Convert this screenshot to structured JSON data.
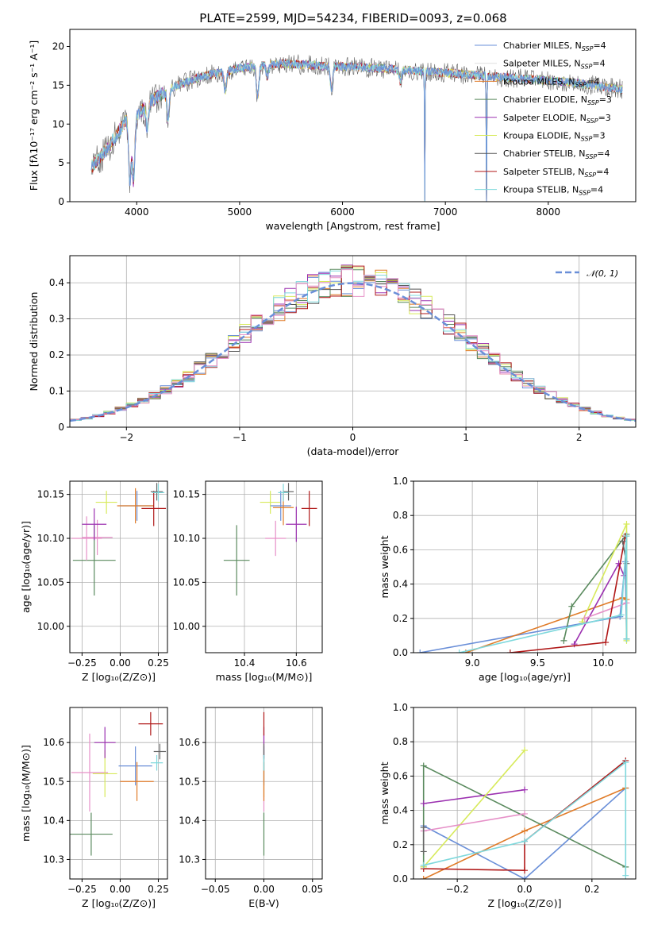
{
  "colors": {
    "Chabrier MILES": "#6a8fd8",
    "Salpeter MILES": "#e0e0e0",
    "Kroupa MILES": "#e07b28",
    "Chabrier ELODIE": "#5a8a5e",
    "Salpeter ELODIE": "#9b30b0",
    "Kroupa ELODIE": "#d7ea5a",
    "Chabrier STELIB": "#666666",
    "Salpeter STELIB": "#b01818",
    "Kroupa STELIB": "#7ed8dc",
    "pink": "#e690c8",
    "gaussian": "#6a8fd8"
  },
  "chart_data": [
    {
      "id": "spectrum",
      "type": "line",
      "title": "PLATE=2599, MJD=54234, FIBERID=0093, z=0.068",
      "xlabel": "wavelength [Angstrom, rest frame]",
      "ylabel": "Flux [fλ10⁻¹⁷ erg cm⁻² s⁻¹ A⁻¹]",
      "xlim": [
        3350,
        8850
      ],
      "ylim": [
        0,
        22.2
      ],
      "xticks": [
        4000,
        5000,
        6000,
        7000,
        8000
      ],
      "yticks": [
        0,
        5,
        10,
        15,
        20
      ],
      "legend_position": "top-right",
      "grid": false,
      "series": [
        {
          "name": "Chabrier MILES, N_SSP=4",
          "label": "Chabrier MILES, N",
          "sub": "SSP",
          "suffix": "=4",
          "color": "#6a8fd8"
        },
        {
          "name": "Salpeter MILES, N_SSP=4",
          "label": "Salpeter MILES, N",
          "sub": "SSP",
          "suffix": "=4",
          "color": "#e0e0e0"
        },
        {
          "name": "Kroupa MILES, N_SSP=4",
          "label": "Kroupa MILES, N",
          "sub": "SSP",
          "suffix": "=4",
          "color": "#e07b28"
        },
        {
          "name": "Chabrier ELODIE, N_SSP=3",
          "label": "Chabrier ELODIE, N",
          "sub": "SSP",
          "suffix": "=3",
          "color": "#5a8a5e"
        },
        {
          "name": "Salpeter ELODIE, N_SSP=3",
          "label": "Salpeter ELODIE, N",
          "sub": "SSP",
          "suffix": "=3",
          "color": "#9b30b0"
        },
        {
          "name": "Kroupa ELODIE, N_SSP=3",
          "label": "Kroupa ELODIE, N",
          "sub": "SSP",
          "suffix": "=3",
          "color": "#d7ea5a"
        },
        {
          "name": "Chabrier STELIB, N_SSP=4",
          "label": "Chabrier STELIB, N",
          "sub": "SSP",
          "suffix": "=4",
          "color": "#555555"
        },
        {
          "name": "Salpeter STELIB, N_SSP=4",
          "label": "Salpeter STELIB, N",
          "sub": "SSP",
          "suffix": "=4",
          "color": "#b01818"
        },
        {
          "name": "Kroupa STELIB, N_SSP=4",
          "label": "Kroupa STELIB, N",
          "sub": "SSP",
          "suffix": "=4",
          "color": "#7ed8dc"
        }
      ],
      "continuum": [
        [
          3560,
          4.5
        ],
        [
          3700,
          6.5
        ],
        [
          3900,
          10.5
        ],
        [
          4000,
          11.0
        ],
        [
          4100,
          12.5
        ],
        [
          4300,
          14.5
        ],
        [
          4600,
          16.0
        ],
        [
          5000,
          17.2
        ],
        [
          5400,
          17.8
        ],
        [
          5800,
          17.5
        ],
        [
          6200,
          17.3
        ],
        [
          6600,
          17.0
        ],
        [
          7000,
          16.6
        ],
        [
          7400,
          16.2
        ],
        [
          7800,
          15.8
        ],
        [
          8200,
          15.4
        ],
        [
          8700,
          14.5
        ]
      ],
      "absorption": [
        [
          3934,
          8
        ],
        [
          3969,
          8
        ],
        [
          4102,
          3
        ],
        [
          4304,
          4
        ],
        [
          4861,
          2.5
        ],
        [
          5175,
          4
        ],
        [
          5270,
          1.5
        ],
        [
          5893,
          3
        ],
        [
          6563,
          1.5
        ],
        [
          6800,
          17
        ],
        [
          7400,
          17
        ]
      ]
    },
    {
      "id": "residuals",
      "type": "bar",
      "xlabel": "(data-model)/error",
      "ylabel": "Normed distribution",
      "xlim": [
        -2.5,
        2.5
      ],
      "ylim": [
        0,
        0.475
      ],
      "xticks": [
        -2,
        -1,
        0,
        1,
        2
      ],
      "yticks": [
        0.0,
        0.1,
        0.2,
        0.3,
        0.4
      ],
      "bin_width": 0.1,
      "legend": "𝒩(0, 1)",
      "legend_position": "top-right",
      "grid": true
    },
    {
      "id": "Z-age",
      "type": "scatter",
      "xlabel": "Z [log₁₀(Z/Z⊙)]",
      "ylabel": "age  [log₁₀(age/yr)]",
      "xlim": [
        -0.33,
        0.31
      ],
      "ylim": [
        9.97,
        10.165
      ],
      "xticks": [
        -0.25,
        0.0,
        0.25
      ],
      "xticklabels": [
        "−0.25",
        "0.00",
        "0.25"
      ],
      "yticks": [
        10.0,
        10.05,
        10.1,
        10.15
      ],
      "yticklabels": [
        "10.00",
        "10.05",
        "10.10",
        "10.15"
      ],
      "grid": true,
      "points": [
        {
          "x": -0.17,
          "y": 10.075,
          "xerr": 0.14,
          "yerr": 0.04,
          "color": "#5a8a5e"
        },
        {
          "x": -0.22,
          "y": 10.1,
          "xerr": 0.1,
          "yerr": 0.025,
          "color": "#e690c8"
        },
        {
          "x": -0.15,
          "y": 10.101,
          "xerr": 0.1,
          "yerr": 0.02,
          "color": "#e690c8"
        },
        {
          "x": -0.17,
          "y": 10.116,
          "xerr": 0.08,
          "yerr": 0.018,
          "color": "#9b30b0"
        },
        {
          "x": -0.09,
          "y": 10.141,
          "xerr": 0.07,
          "yerr": 0.013,
          "color": "#d7ea5a"
        },
        {
          "x": 0.11,
          "y": 10.137,
          "xerr": 0.11,
          "yerr": 0.017,
          "color": "#6a8fd8"
        },
        {
          "x": 0.1,
          "y": 10.137,
          "xerr": 0.12,
          "yerr": 0.02,
          "color": "#e07b28"
        },
        {
          "x": 0.22,
          "y": 10.134,
          "xerr": 0.08,
          "yerr": 0.02,
          "color": "#b01818"
        },
        {
          "x": 0.24,
          "y": 10.153,
          "xerr": 0.04,
          "yerr": 0.01,
          "color": "#666666"
        },
        {
          "x": 0.25,
          "y": 10.152,
          "xerr": 0.04,
          "yerr": 0.01,
          "color": "#7ed8dc"
        }
      ]
    },
    {
      "id": "mass-age",
      "type": "scatter",
      "xlabel": "mass [log₁₀(M/M⊙)]",
      "xlim": [
        10.25,
        10.7
      ],
      "ylim": [
        9.97,
        10.165
      ],
      "xticks": [
        10.4,
        10.6
      ],
      "xticklabels": [
        "10.4",
        "10.6"
      ],
      "yticks": [
        10.0,
        10.05,
        10.1,
        10.15
      ],
      "yticklabels": [
        "10.00",
        "10.05",
        "10.10",
        "10.15"
      ],
      "grid": true,
      "points": [
        {
          "x": 10.37,
          "y": 10.075,
          "xerr": 0.05,
          "yerr": 0.04,
          "color": "#5a8a5e"
        },
        {
          "x": 10.52,
          "y": 10.1,
          "xerr": 0.04,
          "yerr": 0.02,
          "color": "#e690c8"
        },
        {
          "x": 10.6,
          "y": 10.116,
          "xerr": 0.04,
          "yerr": 0.02,
          "color": "#9b30b0"
        },
        {
          "x": 10.5,
          "y": 10.141,
          "xerr": 0.04,
          "yerr": 0.013,
          "color": "#d7ea5a"
        },
        {
          "x": 10.54,
          "y": 10.137,
          "xerr": 0.04,
          "yerr": 0.017,
          "color": "#6a8fd8"
        },
        {
          "x": 10.55,
          "y": 10.135,
          "xerr": 0.04,
          "yerr": 0.02,
          "color": "#e07b28"
        },
        {
          "x": 10.65,
          "y": 10.134,
          "xerr": 0.03,
          "yerr": 0.02,
          "color": "#b01818"
        },
        {
          "x": 10.57,
          "y": 10.153,
          "xerr": 0.02,
          "yerr": 0.01,
          "color": "#666666"
        },
        {
          "x": 10.55,
          "y": 10.152,
          "xerr": 0.02,
          "yerr": 0.01,
          "color": "#7ed8dc"
        }
      ]
    },
    {
      "id": "age-weight",
      "type": "line",
      "xlabel": "age  [log₁₀(age/yr)]",
      "ylabel": "mass weight",
      "xlim": [
        8.55,
        10.25
      ],
      "ylim": [
        0,
        1
      ],
      "xticks": [
        9.0,
        9.5,
        10.0
      ],
      "xticklabels": [
        "9.0",
        "9.5",
        "10.0"
      ],
      "yticks": [
        0,
        0.2,
        0.4,
        0.6,
        0.8,
        1.0
      ],
      "yticklabels": [
        "0.0",
        "0.2",
        "0.4",
        "0.6",
        "0.8",
        "1.0"
      ],
      "grid": true,
      "series": [
        {
          "color": "#6a8fd8",
          "points": [
            [
              8.6,
              0.0
            ],
            [
              10.13,
              0.21
            ],
            [
              10.17,
              0.53
            ],
            [
              10.18,
              0.08
            ]
          ]
        },
        {
          "color": "#e07b28",
          "points": [
            [
              8.95,
              0.0
            ],
            [
              10.15,
              0.32
            ],
            [
              10.18,
              0.31
            ]
          ]
        },
        {
          "color": "#5a8a5e",
          "points": [
            [
              9.7,
              0.07
            ],
            [
              9.76,
              0.27
            ],
            [
              10.18,
              0.69
            ],
            [
              10.18,
              0.08
            ]
          ]
        },
        {
          "color": "#9b30b0",
          "points": [
            [
              9.78,
              0.05
            ],
            [
              10.12,
              0.52
            ],
            [
              10.16,
              0.45
            ]
          ]
        },
        {
          "color": "#d7ea5a",
          "points": [
            [
              9.84,
              0.18
            ],
            [
              10.18,
              0.75
            ],
            [
              10.18,
              0.07
            ]
          ]
        },
        {
          "color": "#e690c8",
          "points": [
            [
              9.86,
              0.2
            ],
            [
              10.18,
              0.29
            ]
          ]
        },
        {
          "color": "#b01818",
          "points": [
            [
              9.29,
              0.0
            ],
            [
              10.02,
              0.06
            ],
            [
              10.17,
              0.68
            ]
          ]
        },
        {
          "color": "#666666",
          "points": [
            [
              10.15,
              0.65
            ],
            [
              10.18,
              0.52
            ]
          ]
        },
        {
          "color": "#7ed8dc",
          "points": [
            [
              8.9,
              0.0
            ],
            [
              10.14,
              0.22
            ],
            [
              10.18,
              0.68
            ],
            [
              10.18,
              0.08
            ]
          ]
        }
      ]
    },
    {
      "id": "Z-mass",
      "type": "scatter",
      "xlabel": "Z [log₁₀(Z/Z⊙)]",
      "ylabel": "mass [log₁₀(M/M⊙)]",
      "xlim": [
        -0.33,
        0.31
      ],
      "ylim": [
        10.25,
        10.69
      ],
      "xticks": [
        -0.25,
        0.0,
        0.25
      ],
      "xticklabels": [
        "−0.25",
        "0.00",
        "0.25"
      ],
      "yticks": [
        10.3,
        10.4,
        10.5,
        10.6
      ],
      "yticklabels": [
        "10.3",
        "10.4",
        "10.5",
        "10.6"
      ],
      "grid": true,
      "points": [
        {
          "x": -0.19,
          "y": 10.365,
          "xerr": 0.14,
          "yerr": 0.055,
          "color": "#5a8a5e"
        },
        {
          "x": -0.2,
          "y": 10.523,
          "xerr": 0.12,
          "yerr": 0.1,
          "color": "#e690c8"
        },
        {
          "x": -0.1,
          "y": 10.52,
          "xerr": 0.08,
          "yerr": 0.06,
          "color": "#d7ea5a"
        },
        {
          "x": -0.1,
          "y": 10.6,
          "xerr": 0.07,
          "yerr": 0.04,
          "color": "#9b30b0"
        },
        {
          "x": 0.1,
          "y": 10.54,
          "xerr": 0.11,
          "yerr": 0.05,
          "color": "#6a8fd8"
        },
        {
          "x": 0.11,
          "y": 10.5,
          "xerr": 0.11,
          "yerr": 0.05,
          "color": "#e07b28"
        },
        {
          "x": 0.2,
          "y": 10.648,
          "xerr": 0.08,
          "yerr": 0.03,
          "color": "#b01818"
        },
        {
          "x": 0.26,
          "y": 10.577,
          "xerr": 0.04,
          "yerr": 0.02,
          "color": "#666666"
        },
        {
          "x": 0.24,
          "y": 10.548,
          "xerr": 0.04,
          "yerr": 0.02,
          "color": "#7ed8dc"
        }
      ]
    },
    {
      "id": "EBV-mass",
      "type": "scatter",
      "xlabel": "E(B-V)",
      "xlim": [
        -0.06,
        0.06
      ],
      "ylim": [
        10.25,
        10.69
      ],
      "xticks": [
        -0.05,
        0.0,
        0.05
      ],
      "xticklabels": [
        "−0.05",
        "0.00",
        "0.05"
      ],
      "yticks": [
        10.3,
        10.4,
        10.5,
        10.6
      ],
      "yticklabels": [
        "10.3",
        "10.4",
        "10.5",
        "10.6"
      ],
      "grid": true,
      "points": [
        {
          "x": 0.0,
          "y": 10.365,
          "xerr": 0.0,
          "yerr": 0.055,
          "color": "#5a8a5e"
        },
        {
          "x": 0.0,
          "y": 10.523,
          "xerr": 0.0,
          "yerr": 0.1,
          "color": "#e690c8"
        },
        {
          "x": 0.0,
          "y": 10.52,
          "xerr": 0.0,
          "yerr": 0.06,
          "color": "#d7ea5a"
        },
        {
          "x": 0.0,
          "y": 10.6,
          "xerr": 0.0,
          "yerr": 0.04,
          "color": "#9b30b0"
        },
        {
          "x": 0.0,
          "y": 10.54,
          "xerr": 0.0,
          "yerr": 0.05,
          "color": "#6a8fd8"
        },
        {
          "x": 0.0,
          "y": 10.5,
          "xerr": 0.0,
          "yerr": 0.05,
          "color": "#e07b28"
        },
        {
          "x": 0.0,
          "y": 10.648,
          "xerr": 0.0,
          "yerr": 0.03,
          "color": "#b01818"
        },
        {
          "x": 0.0,
          "y": 10.577,
          "xerr": 0.0,
          "yerr": 0.02,
          "color": "#666666"
        },
        {
          "x": 0.0,
          "y": 10.548,
          "xerr": 0.0,
          "yerr": 0.02,
          "color": "#7ed8dc"
        }
      ]
    },
    {
      "id": "Z-weight",
      "type": "line",
      "xlabel": "Z [log₁₀(Z/Z⊙)]",
      "ylabel": "mass weight",
      "xlim": [
        -0.33,
        0.33
      ],
      "ylim": [
        0,
        1
      ],
      "xticks": [
        -0.2,
        0.0,
        0.2
      ],
      "xticklabels": [
        "−0.2",
        "0.0",
        "0.2"
      ],
      "yticks": [
        0,
        0.2,
        0.4,
        0.6,
        0.8,
        1.0
      ],
      "yticklabels": [
        "0.0",
        "0.2",
        "0.4",
        "0.6",
        "0.8",
        "1.0"
      ],
      "grid": true,
      "series": [
        {
          "color": "#6a8fd8",
          "points": [
            [
              -0.3,
              0.31
            ],
            [
              0.0,
              0.0
            ],
            [
              0.3,
              0.53
            ]
          ]
        },
        {
          "color": "#e07b28",
          "points": [
            [
              -0.3,
              0.0
            ],
            [
              0.0,
              0.28
            ],
            [
              0.3,
              0.53
            ]
          ]
        },
        {
          "color": "#5a8a5e",
          "points": [
            [
              -0.3,
              0.07
            ],
            [
              -0.3,
              0.66
            ],
            [
              0.3,
              0.07
            ]
          ]
        },
        {
          "color": "#9b30b0",
          "points": [
            [
              -0.3,
              0.44
            ],
            [
              0.0,
              0.52
            ]
          ]
        },
        {
          "color": "#d7ea5a",
          "points": [
            [
              -0.3,
              0.07
            ],
            [
              0.0,
              0.75
            ]
          ]
        },
        {
          "color": "#e690c8",
          "points": [
            [
              -0.3,
              0.28
            ],
            [
              0.0,
              0.38
            ]
          ]
        },
        {
          "color": "#b01818",
          "points": [
            [
              -0.3,
              0.06
            ],
            [
              0.0,
              0.05
            ],
            [
              0.0,
              0.22
            ],
            [
              0.3,
              0.69
            ]
          ]
        },
        {
          "color": "#666666",
          "points": [
            [
              -0.3,
              0.3
            ],
            [
              -0.3,
              0.16
            ]
          ]
        },
        {
          "color": "#7ed8dc",
          "points": [
            [
              -0.3,
              0.08
            ],
            [
              0.0,
              0.22
            ],
            [
              0.3,
              0.68
            ],
            [
              0.3,
              0.02
            ]
          ]
        }
      ]
    }
  ]
}
